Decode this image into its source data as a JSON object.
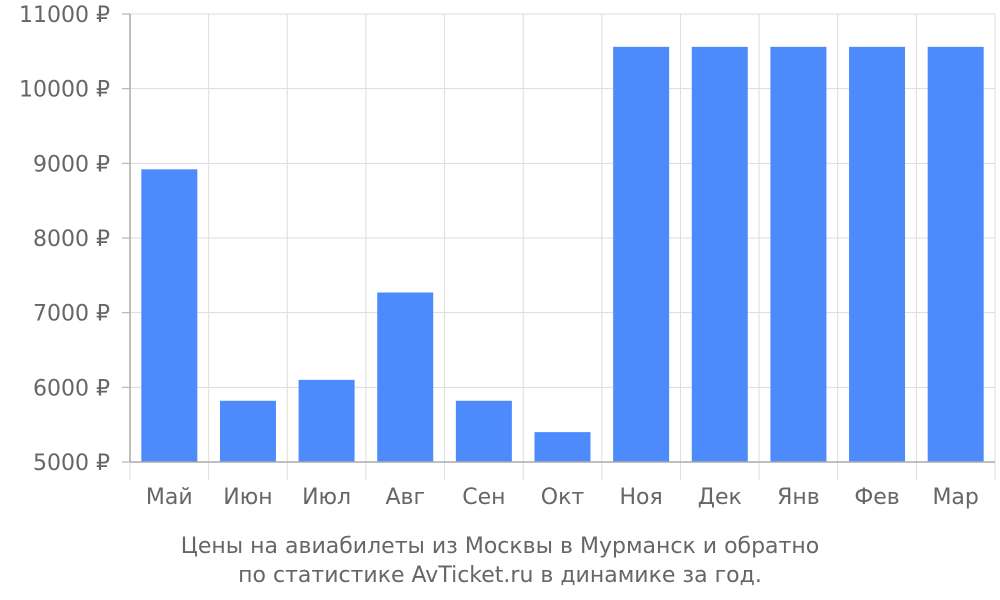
{
  "chart_data": {
    "type": "bar",
    "categories": [
      "Май",
      "Июн",
      "Июл",
      "Авг",
      "Сен",
      "Окт",
      "Ноя",
      "Дек",
      "Янв",
      "Фев",
      "Мар"
    ],
    "values": [
      8920,
      5820,
      6100,
      7270,
      5820,
      5400,
      10560,
      10560,
      10560,
      10560,
      10560
    ],
    "ylim": [
      5000,
      11000
    ],
    "yticks": [
      5000,
      6000,
      7000,
      8000,
      9000,
      10000,
      11000
    ],
    "ytick_labels": [
      "5000 ₽",
      "6000 ₽",
      "7000 ₽",
      "8000 ₽",
      "9000 ₽",
      "10000 ₽",
      "11000 ₽"
    ],
    "bar_color": "#4d8afc",
    "grid_color": "#dddddd",
    "axis_color": "#aaaaaa",
    "grid": true
  },
  "caption": {
    "line1": "Цены на авиабилеты из Москвы в Мурманск и обратно",
    "line2": "по статистике AvTicket.ru в динамике за год."
  }
}
